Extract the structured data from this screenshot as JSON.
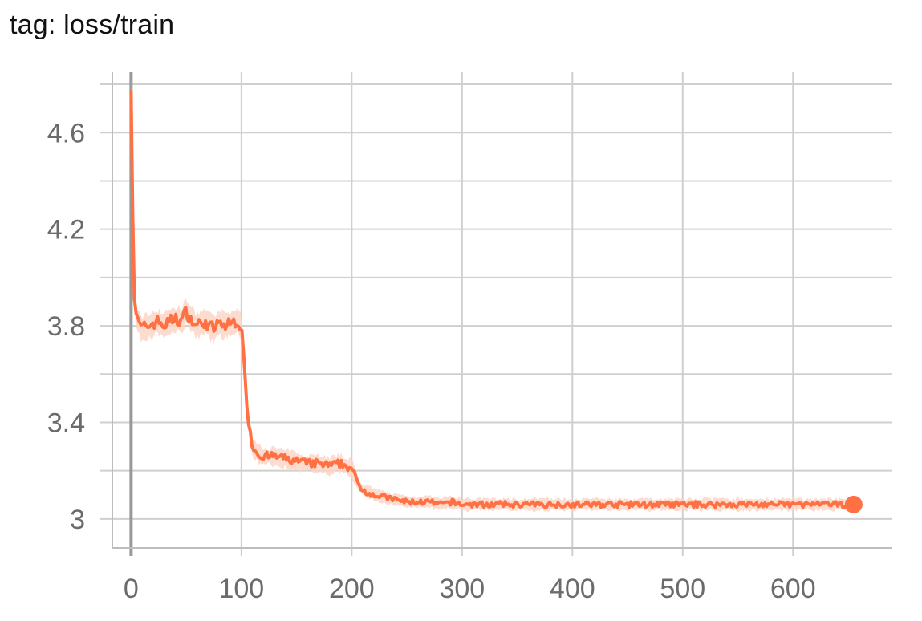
{
  "chart_title": "tag: loss/train",
  "chart_data": {
    "type": "line",
    "title": "tag: loss/train",
    "xlabel": "",
    "ylabel": "",
    "xlim": [
      -17,
      690
    ],
    "ylim": [
      2.88,
      4.85
    ],
    "x_ticks": [
      0,
      100,
      200,
      300,
      400,
      500,
      600
    ],
    "x_tick_labels": [
      "0",
      "100",
      "200",
      "300",
      "400",
      "500",
      "600"
    ],
    "y_ticks": [
      3.0,
      3.4,
      3.8,
      4.2,
      4.6
    ],
    "y_tick_labels": [
      "3",
      "3.4",
      "3.8",
      "4.2",
      "4.6"
    ],
    "y_minor_grid": [
      3.2,
      3.6,
      4.0,
      4.4,
      4.8
    ],
    "grid": true,
    "legend": "none",
    "colors": {
      "line": "#ff7043",
      "band": "#fdd3c4",
      "grid": "#cfcfcf",
      "axis": "#bdbdbd",
      "zero_line": "#999999",
      "tick_text": "#6b6b6b"
    },
    "series": [
      {
        "x": [
          0,
          1,
          2,
          3,
          4,
          6,
          8,
          10,
          15,
          20,
          25,
          30,
          35,
          40,
          45,
          50,
          55,
          60,
          65,
          70,
          75,
          80,
          85,
          90,
          95,
          100,
          103,
          106,
          110,
          115,
          120,
          130,
          140,
          150,
          160,
          170,
          180,
          190,
          200,
          205,
          210,
          220,
          230,
          240,
          250,
          260,
          270,
          280,
          290,
          300,
          320,
          340,
          360,
          380,
          400,
          420,
          440,
          460,
          480,
          500,
          520,
          540,
          560,
          580,
          600,
          620,
          640,
          655
        ],
        "y": [
          4.77,
          4.45,
          4.1,
          3.92,
          3.86,
          3.82,
          3.8,
          3.79,
          3.8,
          3.81,
          3.82,
          3.8,
          3.82,
          3.83,
          3.82,
          3.86,
          3.82,
          3.8,
          3.82,
          3.8,
          3.79,
          3.81,
          3.8,
          3.81,
          3.82,
          3.8,
          3.6,
          3.42,
          3.3,
          3.27,
          3.26,
          3.26,
          3.25,
          3.24,
          3.23,
          3.23,
          3.22,
          3.23,
          3.21,
          3.15,
          3.12,
          3.1,
          3.09,
          3.08,
          3.07,
          3.07,
          3.07,
          3.06,
          3.07,
          3.06,
          3.06,
          3.06,
          3.06,
          3.06,
          3.06,
          3.06,
          3.06,
          3.06,
          3.06,
          3.06,
          3.06,
          3.06,
          3.06,
          3.06,
          3.06,
          3.06,
          3.06,
          3.06
        ]
      }
    ],
    "last_point": {
      "x": 655,
      "y": 3.06
    }
  }
}
